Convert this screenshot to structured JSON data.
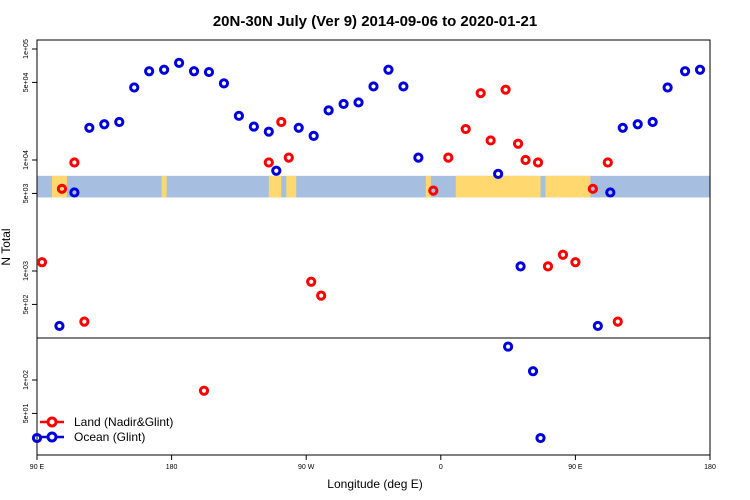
{
  "chart_data": {
    "type": "scatter",
    "title": "20N-30N July (Ver 9)   2014-09-06 to 2020-01-21",
    "xlabel": "Longitude (deg E)",
    "ylabel": "N Total",
    "xlim": [
      -90,
      180
    ],
    "x_ticks": [
      {
        "value": -90,
        "label": "90 E"
      },
      {
        "value": -36,
        "label": "180"
      },
      {
        "value": 18,
        "label": "90 W"
      },
      {
        "value": 72,
        "label": "0"
      },
      {
        "value": 126,
        "label": "90 E"
      },
      {
        "value": 180,
        "label": "180"
      }
    ],
    "y_ticks": [
      {
        "value": 100000,
        "label": "1e+05"
      },
      {
        "value": 50000,
        "label": "5e+04"
      },
      {
        "value": 10000,
        "label": "1e+04"
      },
      {
        "value": 5000,
        "label": "5e+03"
      },
      {
        "value": 1000,
        "label": "1e+03"
      },
      {
        "value": 500,
        "label": "5e+02"
      },
      {
        "value": 100,
        "label": "1e+02"
      },
      {
        "value": 50,
        "label": "5e+01"
      }
    ],
    "legend_position": "bottom-left",
    "colors": {
      "land": "#ff0000",
      "ocean": "#0000dd",
      "map_land": "#ffd870",
      "map_ocean": "#a6bfe0"
    },
    "series": [
      {
        "name": "Land (Nadir&Glint)",
        "color": "#ff0000",
        "points": [
          [
            -88,
            1200
          ],
          [
            -80,
            5500
          ],
          [
            -75,
            9500
          ],
          [
            -71,
            350
          ],
          [
            -23,
            80
          ],
          [
            3,
            9500
          ],
          [
            8,
            22000
          ],
          [
            11,
            10500
          ],
          [
            20,
            800
          ],
          [
            24,
            600
          ],
          [
            69,
            5300
          ],
          [
            75,
            10500
          ],
          [
            82,
            19000
          ],
          [
            88,
            40000
          ],
          [
            92,
            15000
          ],
          [
            98,
            43000
          ],
          [
            103,
            14000
          ],
          [
            106,
            10000
          ],
          [
            111,
            9500
          ],
          [
            115,
            1100
          ],
          [
            121,
            1400
          ],
          [
            126,
            1200
          ],
          [
            133,
            5500
          ],
          [
            139,
            9500
          ],
          [
            143,
            350
          ]
        ]
      },
      {
        "name": "Ocean (Glint)",
        "color": "#0000dd",
        "points": [
          [
            -90,
            30
          ],
          [
            -81,
            320
          ],
          [
            -75,
            5100
          ],
          [
            -69,
            19500
          ],
          [
            -63,
            21000
          ],
          [
            -57,
            22000
          ],
          [
            -51,
            45000
          ],
          [
            -45,
            63000
          ],
          [
            -39,
            65000
          ],
          [
            -33,
            75000
          ],
          [
            -27,
            63000
          ],
          [
            -21,
            62000
          ],
          [
            -15,
            49000
          ],
          [
            -9,
            25000
          ],
          [
            -3,
            20000
          ],
          [
            3,
            18000
          ],
          [
            6,
            8000
          ],
          [
            15,
            19500
          ],
          [
            21,
            16500
          ],
          [
            27,
            28000
          ],
          [
            33,
            32000
          ],
          [
            39,
            33000
          ],
          [
            45,
            46000
          ],
          [
            51,
            65000
          ],
          [
            57,
            46000
          ],
          [
            63,
            10500
          ],
          [
            95,
            7500
          ],
          [
            99,
            200
          ],
          [
            104,
            1100
          ],
          [
            109,
            120
          ],
          [
            112,
            30
          ],
          [
            135,
            320
          ],
          [
            140,
            5100
          ],
          [
            145,
            19500
          ],
          [
            151,
            21000
          ],
          [
            157,
            22000
          ],
          [
            163,
            45000
          ],
          [
            170,
            63000
          ],
          [
            176,
            65000
          ]
        ]
      }
    ],
    "map_band": {
      "y_top": 7200,
      "y_bottom": 4600
    }
  }
}
